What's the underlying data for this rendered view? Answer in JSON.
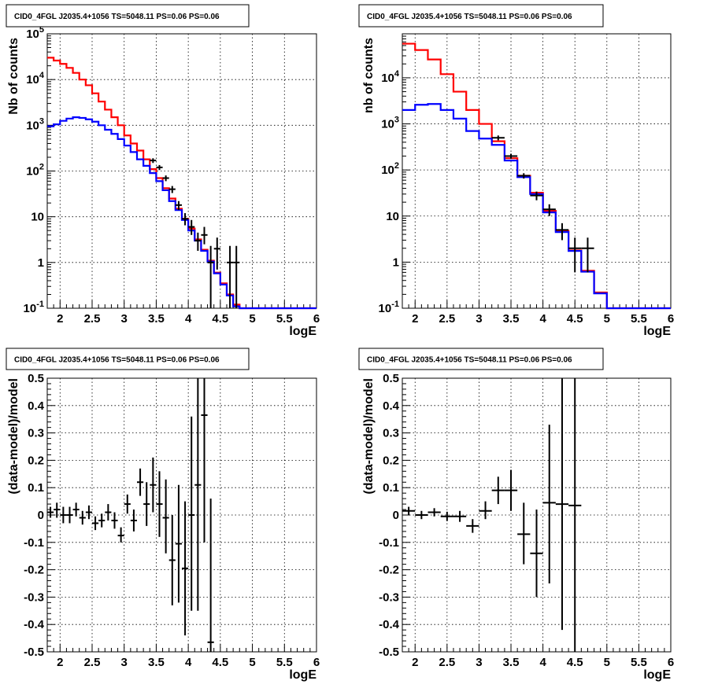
{
  "chart_data": [
    {
      "type": "line",
      "title": "CID0_4FGL J2035.4+1056 TS=5048.11 PS=0.06 PS=0.06",
      "xlabel": "logE",
      "ylabel": "Nb of counts",
      "xlim": [
        1.8,
        6.0
      ],
      "ylim": [
        0.1,
        100000
      ],
      "yscale": "log",
      "grid": true,
      "x_ticks": [
        "2",
        "2.5",
        "3",
        "3.5",
        "4",
        "4.5",
        "5",
        "5.5",
        "6"
      ],
      "y_ticks": [
        "10^-1",
        "1",
        "10",
        "10^2",
        "10^3",
        "10^4",
        "10^5"
      ],
      "bin_edges": [
        1.8,
        1.9,
        2.0,
        2.1,
        2.2,
        2.3,
        2.4,
        2.5,
        2.6,
        2.7,
        2.8,
        2.9,
        3.0,
        3.1,
        3.2,
        3.3,
        3.4,
        3.5,
        3.6,
        3.7,
        3.8,
        3.9,
        4.0,
        4.1,
        4.2,
        4.3,
        4.4,
        4.5,
        4.6,
        4.7,
        4.8,
        4.9,
        5.0,
        5.1,
        5.2,
        5.3,
        5.4,
        5.5,
        5.6,
        5.7,
        5.8,
        5.9,
        6.0
      ],
      "series": [
        {
          "color": "#ff0000",
          "values": [
            30000,
            26000,
            22000,
            18000,
            14000,
            10000,
            7500,
            5000,
            3300,
            2200,
            1500,
            1000,
            600,
            400,
            280,
            180,
            110,
            70,
            42,
            25,
            15,
            9,
            5.5,
            3.2,
            1.9,
            1.1,
            0.6,
            0.35,
            0.2,
            0.12,
            0.1,
            0.1,
            0.1,
            0.1,
            0.1,
            0.1,
            0.1,
            0.1,
            0.1,
            0.1,
            0.1,
            0.1
          ]
        },
        {
          "color": "#0000ff",
          "values": [
            950,
            1050,
            1250,
            1400,
            1500,
            1450,
            1350,
            1200,
            1000,
            800,
            650,
            500,
            360,
            260,
            180,
            130,
            90,
            60,
            38,
            22,
            14,
            8.5,
            5,
            3,
            1.8,
            1.05,
            0.58,
            0.33,
            0.19,
            0.11,
            0.1,
            0.1,
            0.1,
            0.1,
            0.1,
            0.1,
            0.1,
            0.1,
            0.1,
            0.1,
            0.1,
            0.1
          ]
        }
      ],
      "points": [
        {
          "x": 3.45,
          "y": 170,
          "xerr": 0.05,
          "ylo": 150,
          "yhi": 190
        },
        {
          "x": 3.55,
          "y": 120,
          "xerr": 0.05,
          "ylo": 105,
          "yhi": 135
        },
        {
          "x": 3.65,
          "y": 70,
          "xerr": 0.05,
          "ylo": 60,
          "yhi": 80
        },
        {
          "x": 3.75,
          "y": 40,
          "xerr": 0.05,
          "ylo": 33,
          "yhi": 47
        },
        {
          "x": 3.85,
          "y": 18,
          "xerr": 0.05,
          "ylo": 14,
          "yhi": 22
        },
        {
          "x": 3.95,
          "y": 9,
          "xerr": 0.05,
          "ylo": 6.5,
          "yhi": 12
        },
        {
          "x": 4.05,
          "y": 6,
          "xerr": 0.05,
          "ylo": 4,
          "yhi": 8.5
        },
        {
          "x": 4.15,
          "y": 3,
          "xerr": 0.05,
          "ylo": 1.8,
          "yhi": 4.5
        },
        {
          "x": 4.25,
          "y": 4,
          "xerr": 0.05,
          "ylo": 2.5,
          "yhi": 6
        },
        {
          "x": 4.35,
          "y": 1,
          "xerr": 0.05,
          "ylo": 0.1,
          "yhi": 2.3
        },
        {
          "x": 4.45,
          "y": 2,
          "xerr": 0.05,
          "ylo": 0.7,
          "yhi": 3.5
        },
        {
          "x": 4.65,
          "y": 1,
          "xerr": 0.05,
          "ylo": 0.1,
          "yhi": 2.3
        },
        {
          "x": 4.75,
          "y": 1,
          "xerr": 0.05,
          "ylo": 0.1,
          "yhi": 2.3
        }
      ]
    },
    {
      "type": "line",
      "title": "CID0_4FGL J2035.4+1056 TS=5048.11 PS=0.06 PS=0.06",
      "xlabel": "logE",
      "ylabel": "nb of counts",
      "xlim": [
        1.8,
        6.0
      ],
      "ylim": [
        0.1,
        90000
      ],
      "yscale": "log",
      "grid": true,
      "x_ticks": [
        "2",
        "2.5",
        "3",
        "3.5",
        "4",
        "4.5",
        "5",
        "5.5",
        "6"
      ],
      "y_ticks": [
        "10^-1",
        "1",
        "10",
        "10^2",
        "10^3",
        "10^4"
      ],
      "bin_edges": [
        1.8,
        2.0,
        2.2,
        2.4,
        2.6,
        2.8,
        3.0,
        3.2,
        3.4,
        3.6,
        3.8,
        4.0,
        4.2,
        4.4,
        4.6,
        4.8,
        5.0,
        5.2,
        5.4,
        5.6,
        5.8,
        6.0
      ],
      "series": [
        {
          "color": "#ff0000",
          "values": [
            55000,
            40000,
            25000,
            12000,
            5000,
            2000,
            1000,
            420,
            180,
            75,
            32,
            13,
            4.8,
            1.8,
            0.65,
            0.22,
            0.1,
            0.1,
            0.1,
            0.1,
            0.1
          ]
        },
        {
          "color": "#0000ff",
          "values": [
            2000,
            2600,
            2700,
            2000,
            1300,
            700,
            480,
            350,
            160,
            70,
            30,
            12,
            4.5,
            1.75,
            0.62,
            0.21,
            0.1,
            0.1,
            0.1,
            0.1,
            0.1
          ]
        }
      ],
      "points": [
        {
          "x": 3.3,
          "y": 500,
          "xerr": 0.1,
          "ylo": 440,
          "yhi": 560
        },
        {
          "x": 3.5,
          "y": 200,
          "xerr": 0.1,
          "ylo": 175,
          "yhi": 225
        },
        {
          "x": 3.7,
          "y": 75,
          "xerr": 0.1,
          "ylo": 65,
          "yhi": 85
        },
        {
          "x": 3.9,
          "y": 28,
          "xerr": 0.1,
          "ylo": 22,
          "yhi": 34
        },
        {
          "x": 4.1,
          "y": 14,
          "xerr": 0.1,
          "ylo": 10,
          "yhi": 18
        },
        {
          "x": 4.3,
          "y": 5,
          "xerr": 0.1,
          "ylo": 3,
          "yhi": 7
        },
        {
          "x": 4.5,
          "y": 2,
          "xerr": 0.1,
          "ylo": 0.6,
          "yhi": 3.4
        },
        {
          "x": 4.7,
          "y": 2,
          "xerr": 0.1,
          "ylo": 0.6,
          "yhi": 3.4
        }
      ]
    },
    {
      "type": "scatter",
      "title": "CID0_4FGL J2035.4+1056 TS=5048.11 PS=0.06 PS=0.06",
      "xlabel": "logE",
      "ylabel": "(data-model)/model",
      "xlim": [
        1.8,
        6.0
      ],
      "ylim": [
        -0.5,
        0.5
      ],
      "grid": true,
      "x_ticks": [
        "2",
        "2.5",
        "3",
        "3.5",
        "4",
        "4.5",
        "5",
        "5.5",
        "6"
      ],
      "y_ticks": [
        "-0.5",
        "-0.4",
        "-0.3",
        "-0.2",
        "-0.1",
        "0",
        "0.1",
        "0.2",
        "0.3",
        "0.4",
        "0.5"
      ],
      "points": [
        {
          "x": 1.85,
          "y": 0.01,
          "xerr": 0.05,
          "ylo": -0.01,
          "yhi": 0.03
        },
        {
          "x": 1.95,
          "y": 0.02,
          "xerr": 0.05,
          "ylo": -0.01,
          "yhi": 0.045
        },
        {
          "x": 2.05,
          "y": 0.0,
          "xerr": 0.05,
          "ylo": -0.03,
          "yhi": 0.03
        },
        {
          "x": 2.15,
          "y": 0.0,
          "xerr": 0.05,
          "ylo": -0.03,
          "yhi": 0.03
        },
        {
          "x": 2.25,
          "y": 0.02,
          "xerr": 0.05,
          "ylo": -0.005,
          "yhi": 0.045
        },
        {
          "x": 2.35,
          "y": -0.01,
          "xerr": 0.05,
          "ylo": -0.035,
          "yhi": 0.015
        },
        {
          "x": 2.45,
          "y": 0.01,
          "xerr": 0.05,
          "ylo": -0.015,
          "yhi": 0.035
        },
        {
          "x": 2.55,
          "y": -0.03,
          "xerr": 0.05,
          "ylo": -0.055,
          "yhi": -0.005
        },
        {
          "x": 2.65,
          "y": -0.02,
          "xerr": 0.05,
          "ylo": -0.045,
          "yhi": 0.005
        },
        {
          "x": 2.75,
          "y": 0.01,
          "xerr": 0.05,
          "ylo": -0.02,
          "yhi": 0.04
        },
        {
          "x": 2.85,
          "y": -0.02,
          "xerr": 0.05,
          "ylo": -0.05,
          "yhi": 0.01
        },
        {
          "x": 2.95,
          "y": -0.075,
          "xerr": 0.05,
          "ylo": -0.1,
          "yhi": -0.045
        },
        {
          "x": 3.05,
          "y": 0.04,
          "xerr": 0.05,
          "ylo": 0.005,
          "yhi": 0.075
        },
        {
          "x": 3.15,
          "y": -0.02,
          "xerr": 0.05,
          "ylo": -0.06,
          "yhi": 0.02
        },
        {
          "x": 3.25,
          "y": 0.12,
          "xerr": 0.05,
          "ylo": 0.07,
          "yhi": 0.17
        },
        {
          "x": 3.35,
          "y": 0.04,
          "xerr": 0.05,
          "ylo": -0.04,
          "yhi": 0.12
        },
        {
          "x": 3.45,
          "y": 0.11,
          "xerr": 0.05,
          "ylo": 0.01,
          "yhi": 0.21
        },
        {
          "x": 3.55,
          "y": 0.04,
          "xerr": 0.05,
          "ylo": -0.08,
          "yhi": 0.16
        },
        {
          "x": 3.65,
          "y": -0.01,
          "xerr": 0.05,
          "ylo": -0.14,
          "yhi": 0.13
        },
        {
          "x": 3.75,
          "y": -0.165,
          "xerr": 0.05,
          "ylo": -0.33,
          "yhi": 0.0
        },
        {
          "x": 3.85,
          "y": -0.105,
          "xerr": 0.05,
          "ylo": -0.32,
          "yhi": 0.11
        },
        {
          "x": 3.95,
          "y": -0.195,
          "xerr": 0.05,
          "ylo": -0.44,
          "yhi": 0.05
        },
        {
          "x": 4.05,
          "y": 0.0,
          "xerr": 0.05,
          "ylo": -0.35,
          "yhi": 0.36
        },
        {
          "x": 4.15,
          "y": 0.11,
          "xerr": 0.05,
          "ylo": -0.35,
          "yhi": 0.5
        },
        {
          "x": 4.25,
          "y": 0.365,
          "xerr": 0.05,
          "ylo": -0.1,
          "yhi": 0.5
        },
        {
          "x": 4.35,
          "y": -0.465,
          "xerr": 0.05,
          "ylo": -0.5,
          "yhi": 0.06
        }
      ]
    },
    {
      "type": "scatter",
      "title": "CID0_4FGL J2035.4+1056 TS=5048.11 PS=0.06 PS=0.06",
      "xlabel": "logE",
      "ylabel": "(data-model)/model",
      "xlim": [
        1.8,
        6.0
      ],
      "ylim": [
        -0.5,
        0.5
      ],
      "grid": true,
      "x_ticks": [
        "2",
        "2.5",
        "3",
        "3.5",
        "4",
        "4.5",
        "5",
        "5.5",
        "6"
      ],
      "y_ticks": [
        "-0.5",
        "-0.4",
        "-0.3",
        "-0.2",
        "-0.1",
        "0",
        "0.1",
        "0.2",
        "0.3",
        "0.4",
        "0.5"
      ],
      "points": [
        {
          "x": 1.9,
          "y": 0.015,
          "xerr": 0.1,
          "ylo": 0.0,
          "yhi": 0.03
        },
        {
          "x": 2.1,
          "y": 0.0,
          "xerr": 0.1,
          "ylo": -0.015,
          "yhi": 0.015
        },
        {
          "x": 2.3,
          "y": 0.01,
          "xerr": 0.1,
          "ylo": -0.005,
          "yhi": 0.025
        },
        {
          "x": 2.5,
          "y": -0.005,
          "xerr": 0.1,
          "ylo": -0.022,
          "yhi": 0.012
        },
        {
          "x": 2.7,
          "y": -0.005,
          "xerr": 0.1,
          "ylo": -0.025,
          "yhi": 0.015
        },
        {
          "x": 2.9,
          "y": -0.04,
          "xerr": 0.1,
          "ylo": -0.065,
          "yhi": -0.015
        },
        {
          "x": 3.1,
          "y": 0.015,
          "xerr": 0.1,
          "ylo": -0.015,
          "yhi": 0.05
        },
        {
          "x": 3.3,
          "y": 0.09,
          "xerr": 0.1,
          "ylo": 0.04,
          "yhi": 0.14
        },
        {
          "x": 3.5,
          "y": 0.09,
          "xerr": 0.1,
          "ylo": 0.015,
          "yhi": 0.165
        },
        {
          "x": 3.7,
          "y": -0.07,
          "xerr": 0.1,
          "ylo": -0.18,
          "yhi": 0.045
        },
        {
          "x": 3.9,
          "y": -0.14,
          "xerr": 0.1,
          "ylo": -0.3,
          "yhi": 0.02
        },
        {
          "x": 4.1,
          "y": 0.045,
          "xerr": 0.1,
          "ylo": -0.25,
          "yhi": 0.33
        },
        {
          "x": 4.3,
          "y": 0.04,
          "xerr": 0.1,
          "ylo": -0.42,
          "yhi": 0.5
        },
        {
          "x": 4.5,
          "y": 0.035,
          "xerr": 0.1,
          "ylo": -0.5,
          "yhi": 0.5
        }
      ]
    }
  ]
}
